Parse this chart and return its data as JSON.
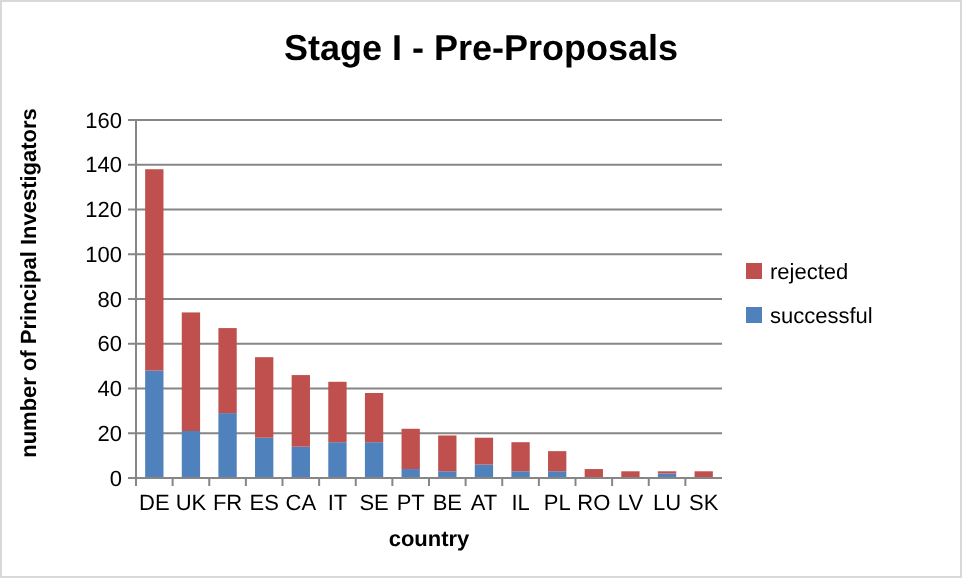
{
  "chart_data": {
    "type": "bar",
    "title": "Stage I - Pre-Proposals",
    "xlabel": "country",
    "ylabel": "number of Principal Investigators",
    "categories": [
      "DE",
      "UK",
      "FR",
      "ES",
      "CA",
      "IT",
      "SE",
      "PT",
      "BE",
      "AT",
      "IL",
      "PL",
      "RO",
      "LV",
      "LU",
      "SK"
    ],
    "stacked": true,
    "series": [
      {
        "name": "successful",
        "color": "#4f81bd",
        "values": [
          48,
          21,
          29,
          18,
          14,
          16,
          16,
          4,
          3,
          6,
          3,
          3,
          0,
          0,
          2,
          0
        ]
      },
      {
        "name": "rejected",
        "color": "#c0504d",
        "values": [
          90,
          53,
          38,
          36,
          32,
          27,
          22,
          18,
          16,
          12,
          13,
          9,
          4,
          3,
          1,
          3
        ]
      }
    ],
    "ylim": [
      0,
      160
    ],
    "yticks": [
      0,
      20,
      40,
      60,
      80,
      100,
      120,
      140,
      160
    ],
    "grid": "y",
    "legend": "right"
  }
}
